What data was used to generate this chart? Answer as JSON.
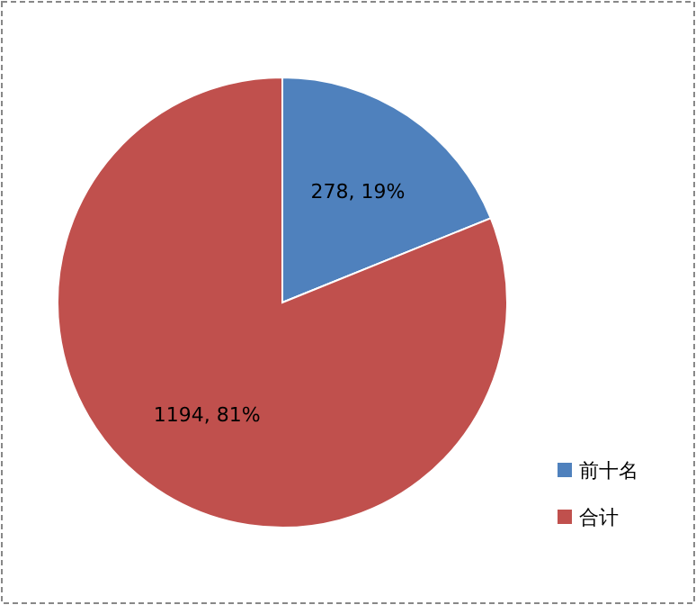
{
  "chart_data": {
    "type": "pie",
    "categories": [
      "前十名",
      "合计"
    ],
    "values": [
      278,
      1194
    ],
    "colors": [
      "#4f81bd",
      "#c0504d"
    ],
    "value_labels": [
      "278, 19%",
      "1194, 81%"
    ],
    "legend": "bottom right"
  }
}
